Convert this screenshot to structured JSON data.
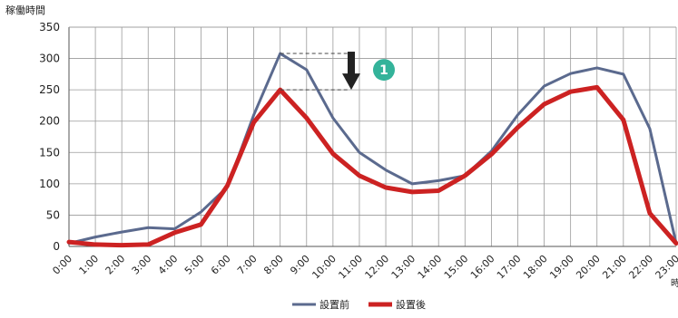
{
  "chart_data": {
    "type": "line",
    "ylabel": "稼働時間",
    "xlabel": "時",
    "ylim": [
      0,
      350
    ],
    "yticks": [
      0,
      50,
      100,
      150,
      200,
      250,
      300,
      350
    ],
    "categories": [
      "0:00",
      "1:00",
      "2:00",
      "3:00",
      "4:00",
      "5:00",
      "6:00",
      "7:00",
      "8:00",
      "9:00",
      "10:00",
      "11:00",
      "12:00",
      "13:00",
      "14:00",
      "15:00",
      "16:00",
      "17:00",
      "18:00",
      "19:00",
      "20:00",
      "21:00",
      "22:00",
      "23:00"
    ],
    "grid": true,
    "legend_position": "bottom-center",
    "series": [
      {
        "name": "設置前",
        "color": "#5b6a8e",
        "values": [
          5,
          15,
          23,
          30,
          28,
          55,
          95,
          210,
          308,
          282,
          205,
          150,
          122,
          100,
          105,
          113,
          152,
          210,
          256,
          276,
          285,
          275,
          188,
          5
        ]
      },
      {
        "name": "設置後",
        "color": "#cc2222",
        "values": [
          7,
          3,
          2,
          3,
          22,
          35,
          97,
          198,
          250,
          205,
          148,
          113,
          94,
          87,
          89,
          113,
          147,
          190,
          227,
          247,
          254,
          202,
          53,
          5
        ]
      }
    ],
    "annotation": {
      "marker": "1",
      "marker_color": "#34b39a",
      "arrow_color": "#222222",
      "from_value": 308,
      "to_value": 250
    }
  }
}
